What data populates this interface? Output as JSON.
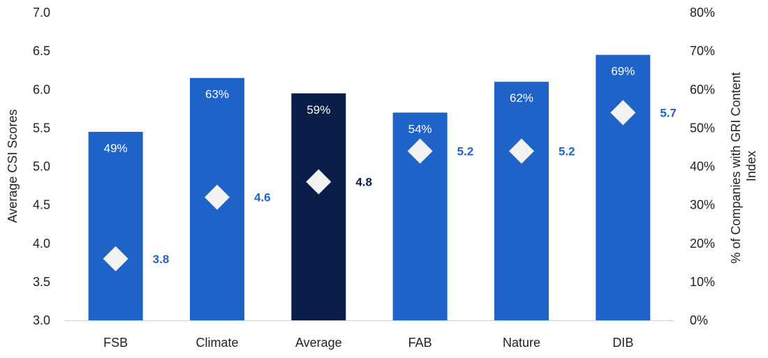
{
  "chart_data": {
    "type": "bar",
    "categories": [
      "FSB",
      "Climate",
      "Average",
      "FAB",
      "Nature",
      "DIB"
    ],
    "series": [
      {
        "type": "bar",
        "axis": "right",
        "values": [
          49,
          63,
          59,
          54,
          62,
          69
        ],
        "value_labels": [
          "49%",
          "63%",
          "59%",
          "54%",
          "62%",
          "69%"
        ]
      },
      {
        "type": "scatter",
        "marker": "diamond",
        "axis": "left",
        "values": [
          3.8,
          4.6,
          4.8,
          5.2,
          5.2,
          5.7
        ],
        "value_labels": [
          "3.8",
          "4.6",
          "4.8",
          "5.2",
          "5.2",
          "5.7"
        ]
      }
    ],
    "ylabel": "Average CSI Scores",
    "ylim": [
      3.0,
      7.0
    ],
    "yticks": [
      "3.0",
      "3.5",
      "4.0",
      "4.5",
      "5.0",
      "5.5",
      "6.0",
      "6.5",
      "7.0"
    ],
    "y2label_lines": [
      "% of Companies with GRI Content",
      "Index"
    ],
    "y2lim": [
      0,
      80
    ],
    "y2ticks": [
      "0%",
      "10%",
      "20%",
      "30%",
      "40%",
      "50%",
      "60%",
      "70%",
      "80%"
    ],
    "highlight_category": "Average",
    "grid": false,
    "legend": "none",
    "colors": {
      "bar": "#1f63c9",
      "bar_highlight": "#0b1d49",
      "marker": "#f2f2f2",
      "score_label": "#1f63c9",
      "score_label_highlight": "#0b1d49",
      "axis_line": "#d0d0d0"
    }
  }
}
